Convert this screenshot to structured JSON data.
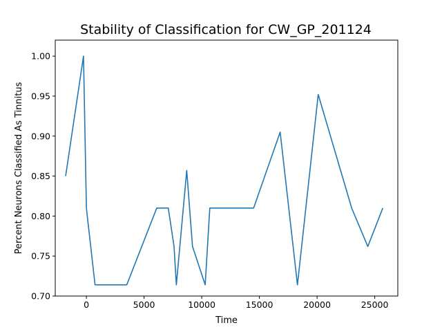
{
  "chart_data": {
    "type": "line",
    "title": "Stability of Classification for CW_GP_201124",
    "xlabel": "Time",
    "ylabel": "Percent Neurons Classified As Tinnitus",
    "xlim": [
      -2700,
      27000
    ],
    "ylim": [
      0.7,
      1.02
    ],
    "xticks": [
      0,
      5000,
      10000,
      15000,
      20000,
      25000
    ],
    "xtick_labels": [
      "0",
      "5000",
      "10000",
      "15000",
      "20000",
      "25000"
    ],
    "yticks": [
      0.7,
      0.75,
      0.8,
      0.85,
      0.9,
      0.95,
      1.0
    ],
    "ytick_labels": [
      "0.70",
      "0.75",
      "0.80",
      "0.85",
      "0.90",
      "0.95",
      "1.00"
    ],
    "grid": false,
    "series": [
      {
        "color": "#1f77b4",
        "x": [
          -1800,
          -250,
          0,
          750,
          3500,
          6100,
          7100,
          7600,
          7800,
          8700,
          9200,
          10300,
          10700,
          14500,
          16800,
          18300,
          20100,
          23000,
          24400,
          25700
        ],
        "y": [
          0.85,
          1.0,
          0.81,
          0.714,
          0.714,
          0.81,
          0.81,
          0.762,
          0.714,
          0.857,
          0.762,
          0.714,
          0.81,
          0.81,
          0.905,
          0.714,
          0.952,
          0.81,
          0.762,
          0.81
        ]
      }
    ]
  }
}
